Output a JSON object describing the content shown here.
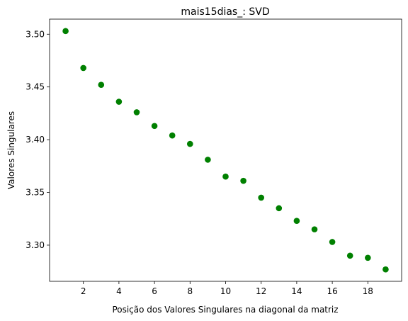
{
  "chart_data": {
    "type": "scatter",
    "title": "mais15dias_: SVD",
    "xlabel": "Posição dos Valores Singulares na diagonal da matriz",
    "ylabel": "Valores Singulares",
    "x": [
      1,
      2,
      3,
      4,
      5,
      6,
      7,
      8,
      9,
      10,
      11,
      12,
      13,
      14,
      15,
      16,
      17,
      18,
      19
    ],
    "y": [
      3.503,
      3.468,
      3.452,
      3.436,
      3.426,
      3.413,
      3.404,
      3.396,
      3.381,
      3.365,
      3.361,
      3.345,
      3.335,
      3.323,
      3.315,
      3.303,
      3.29,
      3.288,
      3.277
    ],
    "xticks": [
      "2",
      "4",
      "6",
      "8",
      "10",
      "12",
      "14",
      "16",
      "18"
    ],
    "yticks": [
      "3.30",
      "3.35",
      "3.40",
      "3.45",
      "3.50"
    ],
    "xlim": [
      0.1,
      19.9
    ],
    "ylim": [
      3.2657,
      3.5143
    ],
    "color": "#008000",
    "grid": false,
    "legend": "none"
  }
}
